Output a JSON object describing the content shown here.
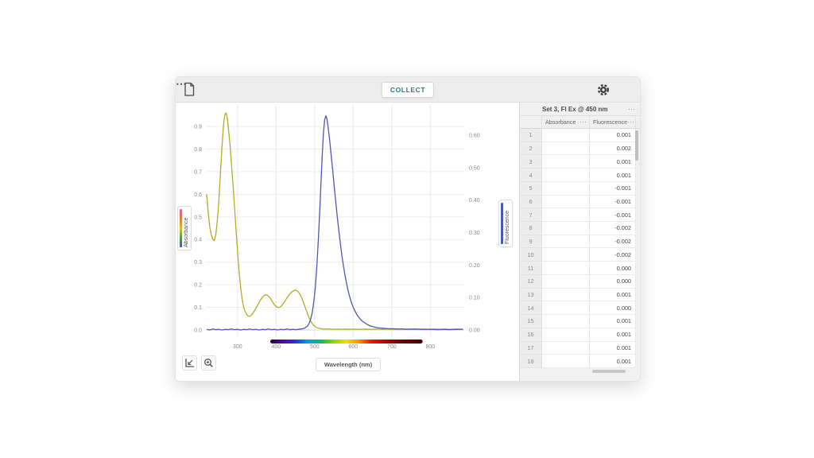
{
  "icons": {
    "overflow_menu": "⋯"
  },
  "topbar": {
    "collect_label": "COLLECT"
  },
  "table": {
    "dataset_title": "Set 3, Fl Ex @ 450 nm",
    "columns": [
      "Absorbance",
      "Fluorescence"
    ],
    "rows": [
      {
        "n": "1",
        "absorbance": "",
        "fluorescence": "0.001"
      },
      {
        "n": "2",
        "absorbance": "",
        "fluorescence": "0.002"
      },
      {
        "n": "3",
        "absorbance": "",
        "fluorescence": "0.001"
      },
      {
        "n": "4",
        "absorbance": "",
        "fluorescence": "0.001"
      },
      {
        "n": "5",
        "absorbance": "",
        "fluorescence": "-0.001"
      },
      {
        "n": "6",
        "absorbance": "",
        "fluorescence": "-0.001"
      },
      {
        "n": "7",
        "absorbance": "",
        "fluorescence": "-0.001"
      },
      {
        "n": "8",
        "absorbance": "",
        "fluorescence": "-0.002"
      },
      {
        "n": "9",
        "absorbance": "",
        "fluorescence": "-0.002"
      },
      {
        "n": "10",
        "absorbance": "",
        "fluorescence": "-0.002"
      },
      {
        "n": "11",
        "absorbance": "",
        "fluorescence": "0.000"
      },
      {
        "n": "12",
        "absorbance": "",
        "fluorescence": "0.000"
      },
      {
        "n": "13",
        "absorbance": "",
        "fluorescence": "0.001"
      },
      {
        "n": "14",
        "absorbance": "",
        "fluorescence": "0.000"
      },
      {
        "n": "15",
        "absorbance": "",
        "fluorescence": "0.001"
      },
      {
        "n": "16",
        "absorbance": "",
        "fluorescence": "0.001"
      },
      {
        "n": "17",
        "absorbance": "",
        "fluorescence": "0.001"
      },
      {
        "n": "18",
        "absorbance": "",
        "fluorescence": "0.001"
      }
    ]
  },
  "chart_data": {
    "type": "line",
    "xlabel": "Wavelength (nm)",
    "x_range": [
      218,
      888
    ],
    "x_ticks": [
      300,
      400,
      500,
      600,
      700,
      800
    ],
    "grid": true,
    "left_axis": {
      "label": "Absorbance",
      "ticks": [
        "0.0",
        "0.1",
        "0.2",
        "0.3",
        "0.4",
        "0.5",
        "0.6",
        "0.7",
        "0.8",
        "0.9"
      ],
      "range": [
        0,
        0.99
      ]
    },
    "right_axis": {
      "label": "Fluorescence",
      "ticks": [
        "0.00",
        "0.10",
        "0.20",
        "0.30",
        "0.40",
        "0.50",
        "0.60"
      ],
      "range": [
        0,
        0.69
      ]
    },
    "spectrum_bar": {
      "from_nm": 385,
      "to_nm": 780
    },
    "series": [
      {
        "name": "Absorbance",
        "axis": "left",
        "color": "#b5ab28",
        "points": [
          [
            220,
            0.6
          ],
          [
            224,
            0.52
          ],
          [
            228,
            0.455
          ],
          [
            232,
            0.42
          ],
          [
            236,
            0.4
          ],
          [
            240,
            0.395
          ],
          [
            244,
            0.425
          ],
          [
            248,
            0.49
          ],
          [
            252,
            0.58
          ],
          [
            256,
            0.7
          ],
          [
            260,
            0.82
          ],
          [
            264,
            0.91
          ],
          [
            267,
            0.95
          ],
          [
            270,
            0.96
          ],
          [
            273,
            0.945
          ],
          [
            276,
            0.9
          ],
          [
            280,
            0.83
          ],
          [
            284,
            0.74
          ],
          [
            288,
            0.65
          ],
          [
            292,
            0.55
          ],
          [
            296,
            0.45
          ],
          [
            300,
            0.35
          ],
          [
            304,
            0.26
          ],
          [
            308,
            0.19
          ],
          [
            312,
            0.135
          ],
          [
            316,
            0.1
          ],
          [
            320,
            0.08
          ],
          [
            324,
            0.068
          ],
          [
            328,
            0.061
          ],
          [
            332,
            0.06
          ],
          [
            336,
            0.066
          ],
          [
            340,
            0.075
          ],
          [
            345,
            0.088
          ],
          [
            350,
            0.103
          ],
          [
            355,
            0.119
          ],
          [
            360,
            0.134
          ],
          [
            365,
            0.146
          ],
          [
            370,
            0.153
          ],
          [
            374,
            0.156
          ],
          [
            378,
            0.153
          ],
          [
            382,
            0.147
          ],
          [
            386,
            0.138
          ],
          [
            390,
            0.127
          ],
          [
            394,
            0.116
          ],
          [
            398,
            0.107
          ],
          [
            402,
            0.101
          ],
          [
            406,
            0.099
          ],
          [
            410,
            0.101
          ],
          [
            414,
            0.107
          ],
          [
            418,
            0.115
          ],
          [
            422,
            0.125
          ],
          [
            426,
            0.136
          ],
          [
            430,
            0.146
          ],
          [
            434,
            0.156
          ],
          [
            438,
            0.164
          ],
          [
            442,
            0.17
          ],
          [
            446,
            0.174
          ],
          [
            450,
            0.176
          ],
          [
            454,
            0.174
          ],
          [
            458,
            0.168
          ],
          [
            462,
            0.158
          ],
          [
            466,
            0.144
          ],
          [
            470,
            0.127
          ],
          [
            474,
            0.108
          ],
          [
            478,
            0.089
          ],
          [
            482,
            0.07
          ],
          [
            486,
            0.053
          ],
          [
            490,
            0.039
          ],
          [
            494,
            0.028
          ],
          [
            498,
            0.02
          ],
          [
            502,
            0.014
          ],
          [
            506,
            0.01
          ],
          [
            510,
            0.008
          ],
          [
            515,
            0.006
          ],
          [
            520,
            0.005
          ],
          [
            530,
            0.004
          ],
          [
            540,
            0.004
          ],
          [
            550,
            0.003
          ],
          [
            560,
            0.004
          ],
          [
            570,
            0.003
          ],
          [
            580,
            0.004
          ],
          [
            590,
            0.003
          ],
          [
            600,
            0.004
          ],
          [
            615,
            0.003
          ],
          [
            630,
            0.004
          ],
          [
            645,
            0.003
          ],
          [
            660,
            0.004
          ],
          [
            675,
            0.003
          ],
          [
            690,
            0.004
          ],
          [
            705,
            0.003
          ],
          [
            720,
            0.004
          ],
          [
            735,
            0.003
          ],
          [
            750,
            0.004
          ],
          [
            765,
            0.003
          ],
          [
            780,
            0.004
          ],
          [
            795,
            0.003
          ],
          [
            810,
            0.004
          ],
          [
            825,
            0.003
          ],
          [
            840,
            0.004
          ],
          [
            855,
            0.003
          ],
          [
            870,
            0.004
          ],
          [
            885,
            0.003
          ]
        ]
      },
      {
        "name": "Fluorescence",
        "axis": "right",
        "color": "#4d58b2",
        "points": [
          [
            220,
            0.002
          ],
          [
            228,
            0.0
          ],
          [
            236,
            0.003
          ],
          [
            244,
            0.001
          ],
          [
            252,
            0.002
          ],
          [
            260,
            0.0
          ],
          [
            268,
            0.002
          ],
          [
            276,
            0.001
          ],
          [
            284,
            0.003
          ],
          [
            292,
            0.001
          ],
          [
            300,
            0.002
          ],
          [
            308,
            0.0
          ],
          [
            316,
            0.002
          ],
          [
            324,
            0.001
          ],
          [
            332,
            0.003
          ],
          [
            340,
            0.001
          ],
          [
            348,
            0.002
          ],
          [
            356,
            0.0
          ],
          [
            364,
            0.002
          ],
          [
            372,
            0.001
          ],
          [
            380,
            0.003
          ],
          [
            388,
            0.001
          ],
          [
            396,
            0.002
          ],
          [
            404,
            0.0
          ],
          [
            412,
            0.002
          ],
          [
            420,
            0.001
          ],
          [
            428,
            0.003
          ],
          [
            436,
            0.001
          ],
          [
            444,
            0.002
          ],
          [
            452,
            0.001
          ],
          [
            458,
            0.002
          ],
          [
            464,
            0.003
          ],
          [
            470,
            0.004
          ],
          [
            476,
            0.007
          ],
          [
            482,
            0.013
          ],
          [
            486,
            0.021
          ],
          [
            490,
            0.034
          ],
          [
            494,
            0.055
          ],
          [
            498,
            0.088
          ],
          [
            502,
            0.135
          ],
          [
            506,
            0.2
          ],
          [
            510,
            0.285
          ],
          [
            514,
            0.385
          ],
          [
            517,
            0.465
          ],
          [
            520,
            0.545
          ],
          [
            523,
            0.607
          ],
          [
            526,
            0.647
          ],
          [
            529,
            0.66
          ],
          [
            532,
            0.65
          ],
          [
            535,
            0.625
          ],
          [
            539,
            0.585
          ],
          [
            543,
            0.538
          ],
          [
            547,
            0.49
          ],
          [
            551,
            0.44
          ],
          [
            555,
            0.392
          ],
          [
            559,
            0.346
          ],
          [
            563,
            0.303
          ],
          [
            567,
            0.263
          ],
          [
            571,
            0.227
          ],
          [
            575,
            0.195
          ],
          [
            579,
            0.167
          ],
          [
            583,
            0.142
          ],
          [
            587,
            0.12
          ],
          [
            591,
            0.102
          ],
          [
            595,
            0.086
          ],
          [
            600,
            0.07
          ],
          [
            606,
            0.055
          ],
          [
            612,
            0.043
          ],
          [
            618,
            0.034
          ],
          [
            624,
            0.027
          ],
          [
            630,
            0.022
          ],
          [
            638,
            0.016
          ],
          [
            646,
            0.012
          ],
          [
            654,
            0.009
          ],
          [
            662,
            0.007
          ],
          [
            672,
            0.006
          ],
          [
            682,
            0.005
          ],
          [
            692,
            0.004
          ],
          [
            702,
            0.004
          ],
          [
            715,
            0.003
          ],
          [
            730,
            0.003
          ],
          [
            745,
            0.002
          ],
          [
            760,
            0.003
          ],
          [
            775,
            0.002
          ],
          [
            790,
            0.002
          ],
          [
            805,
            0.002
          ],
          [
            820,
            0.001
          ],
          [
            835,
            0.002
          ],
          [
            850,
            0.001
          ],
          [
            865,
            0.002
          ],
          [
            885,
            0.002
          ]
        ]
      }
    ]
  }
}
